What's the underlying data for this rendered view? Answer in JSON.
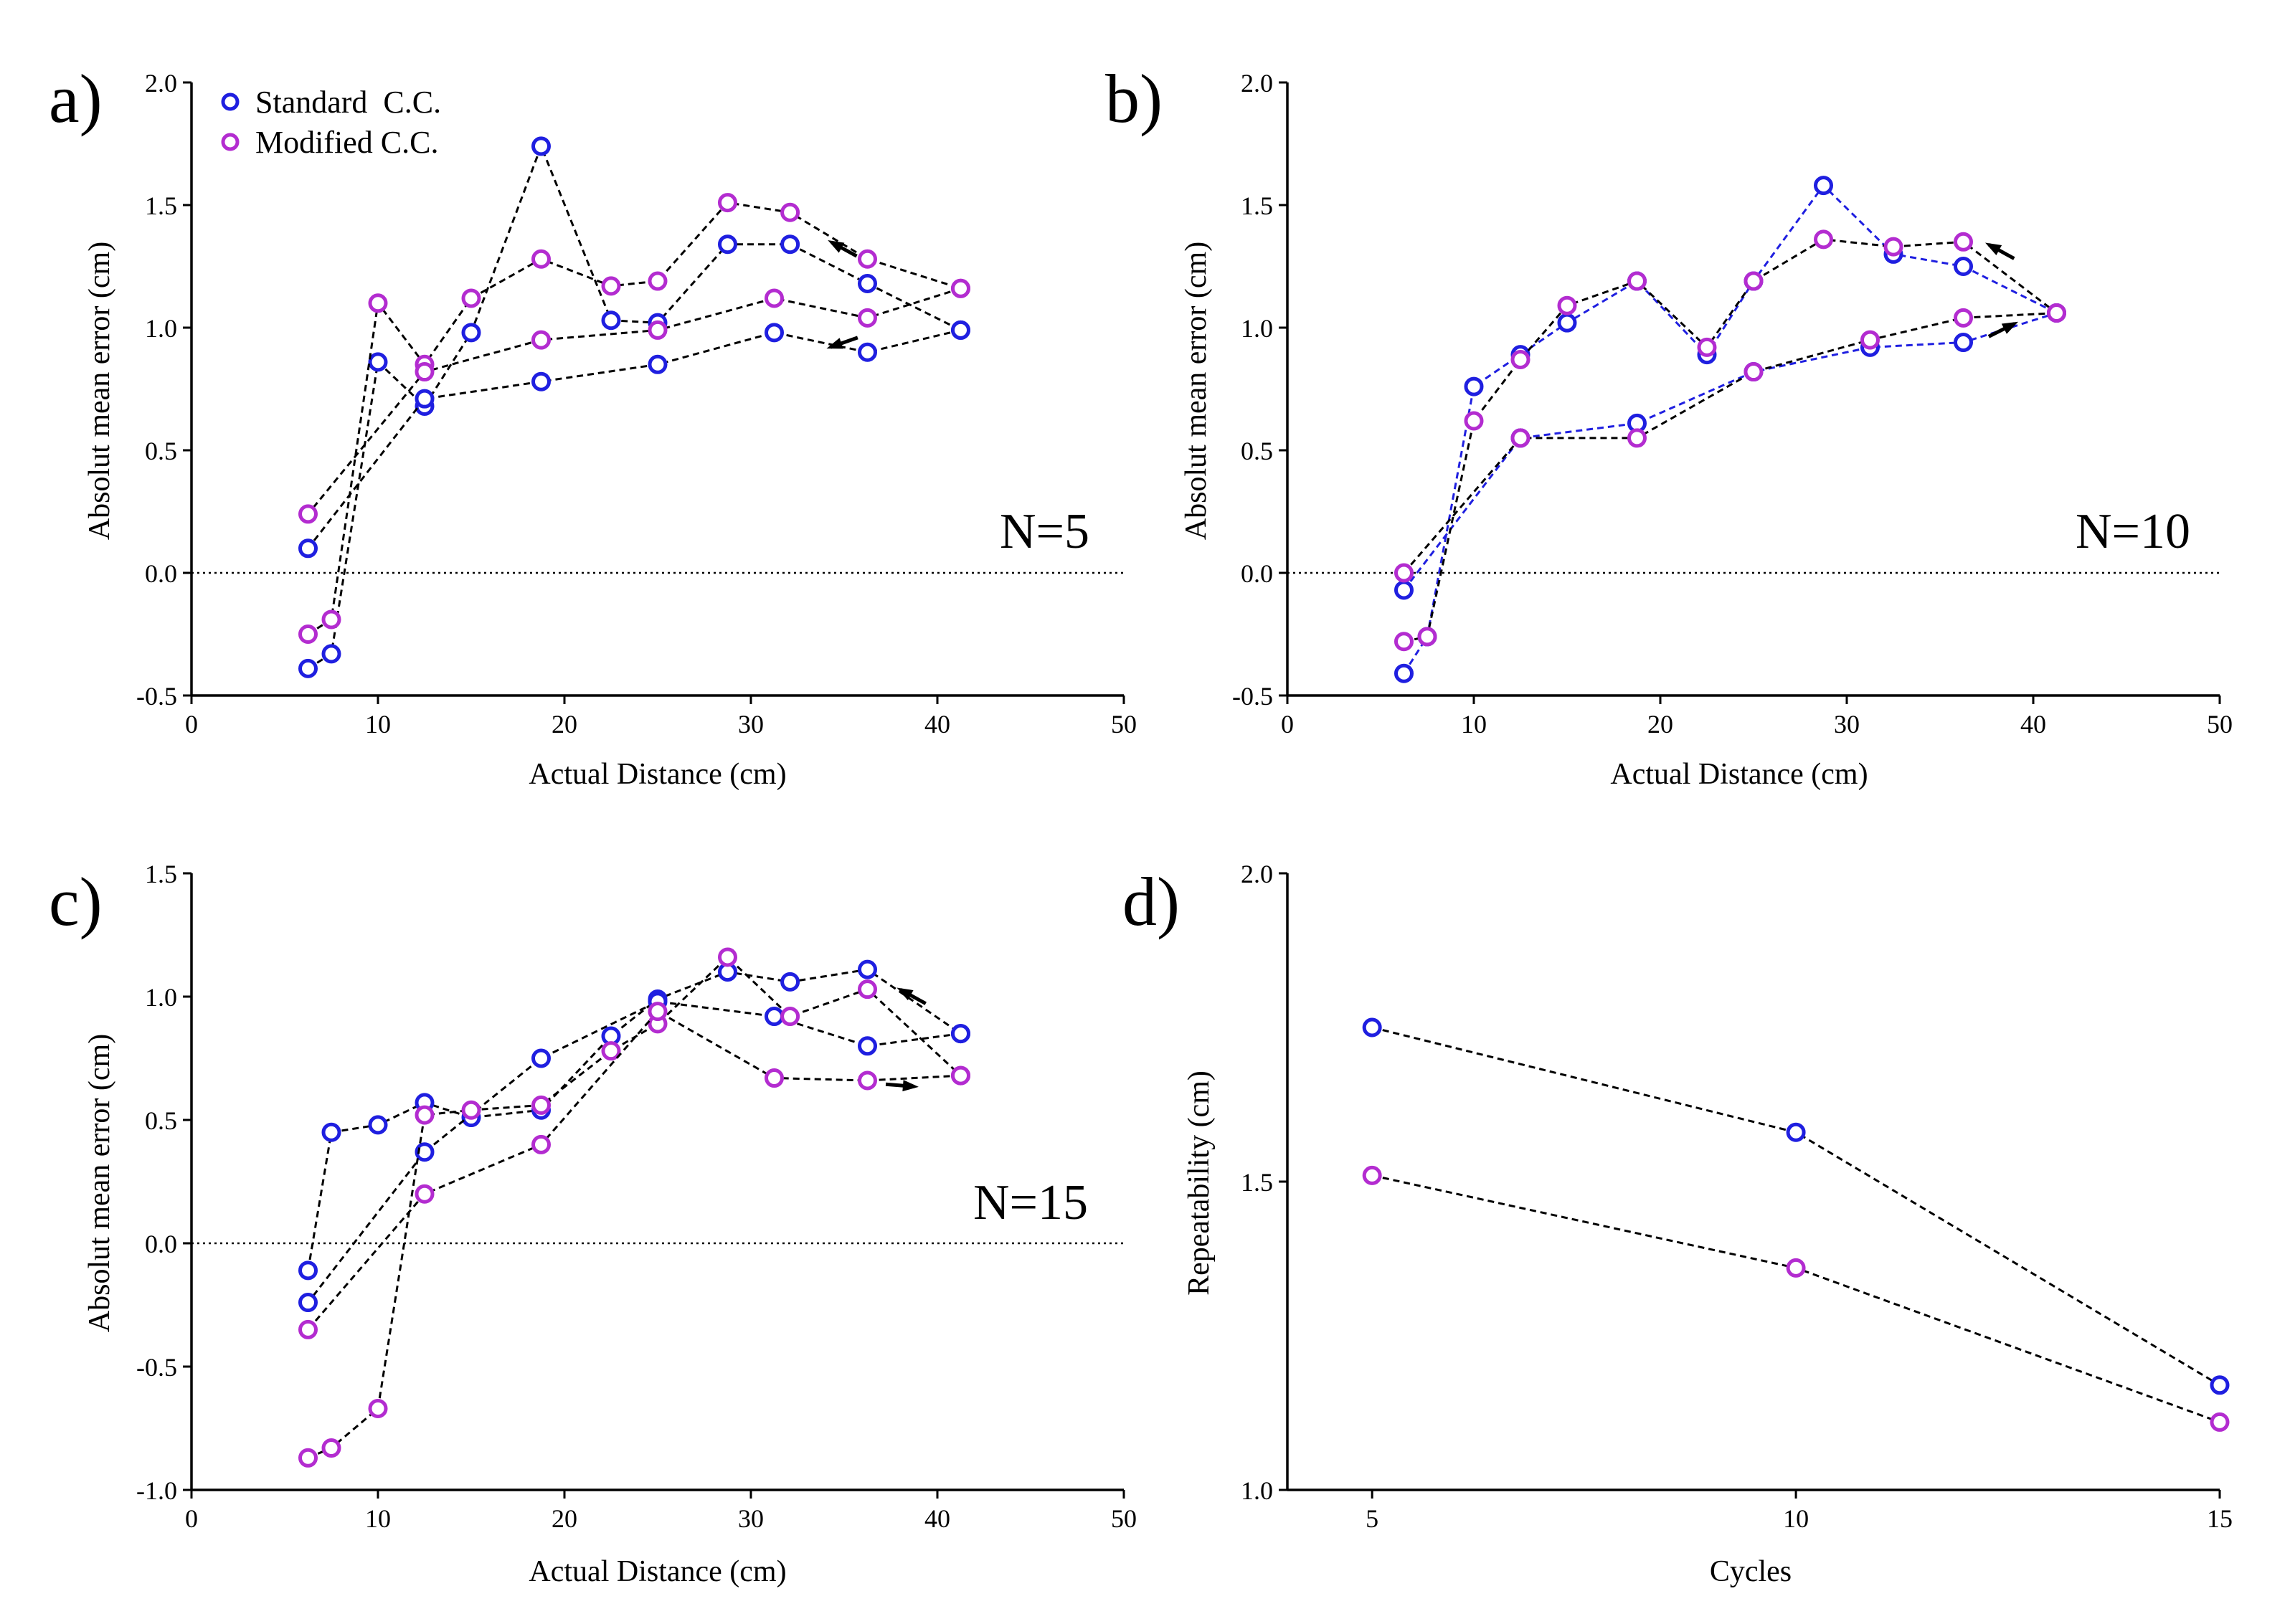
{
  "colors": {
    "standard": "#1f1fe0",
    "modified": "#b32cd0",
    "axis": "#000000",
    "line": "#000000"
  },
  "legend": {
    "standard": "Standard  C.C.",
    "modified": "Modified C.C."
  },
  "chart_data": [
    {
      "id": "a",
      "type": "line",
      "panel_letter": "a)",
      "n_label": "N=5",
      "xlabel": "Actual Distance (cm)",
      "ylabel": "Absolut mean error (cm)",
      "xlim": [
        0,
        50
      ],
      "ylim": [
        -0.5,
        2.0
      ],
      "xticks": [
        0,
        10,
        20,
        30,
        40,
        50
      ],
      "yticks": [
        -0.5,
        0.0,
        0.5,
        1.0,
        1.5,
        2.0
      ],
      "xtick_labels": [
        "0",
        "10",
        "20",
        "30",
        "40",
        "50"
      ],
      "ytick_labels": [
        "-0.5",
        "0.0",
        "0.5",
        "1.0",
        "1.5",
        "2.0"
      ],
      "legend_position": "top-left",
      "arrows": [
        "left-upper",
        "left-lower"
      ],
      "series": [
        {
          "name": "Standard C.C. (approach)",
          "group": "standard",
          "line": "black",
          "x": [
            6.25,
            7.5,
            10,
            12.5,
            15,
            18.75,
            22.5,
            25,
            28.75,
            32.1,
            36.25,
            41.25
          ],
          "y": [
            -0.39,
            -0.33,
            0.86,
            0.68,
            0.98,
            1.74,
            1.03,
            1.02,
            1.34,
            1.34,
            1.18,
            0.99
          ]
        },
        {
          "name": "Standard C.C. (return)",
          "group": "standard",
          "line": "black",
          "x": [
            41.25,
            36.25,
            31.25,
            25,
            18.75,
            12.5,
            6.25
          ],
          "y": [
            0.99,
            0.9,
            0.98,
            0.85,
            0.78,
            0.71,
            0.1
          ]
        },
        {
          "name": "Modified C.C. (approach)",
          "group": "modified",
          "line": "black",
          "x": [
            6.25,
            7.5,
            10,
            12.5,
            15,
            18.75,
            22.5,
            25,
            28.75,
            32.1,
            36.25,
            41.25
          ],
          "y": [
            -0.25,
            -0.19,
            1.1,
            0.85,
            1.12,
            1.28,
            1.17,
            1.19,
            1.51,
            1.47,
            1.28,
            1.16
          ]
        },
        {
          "name": "Modified C.C. (return)",
          "group": "modified",
          "line": "black",
          "x": [
            41.25,
            36.25,
            31.25,
            25,
            18.75,
            12.5,
            6.25
          ],
          "y": [
            1.16,
            1.04,
            1.12,
            0.99,
            0.95,
            0.82,
            0.24
          ]
        }
      ]
    },
    {
      "id": "b",
      "type": "line",
      "panel_letter": "b)",
      "n_label": "N=10",
      "xlabel": "Actual Distance (cm)",
      "ylabel": "Absolut mean error (cm)",
      "xlim": [
        0,
        50
      ],
      "ylim": [
        -0.5,
        2.0
      ],
      "xticks": [
        0,
        10,
        20,
        30,
        40,
        50
      ],
      "yticks": [
        -0.5,
        0.0,
        0.5,
        1.0,
        1.5,
        2.0
      ],
      "xtick_labels": [
        "0",
        "10",
        "20",
        "30",
        "40",
        "50"
      ],
      "ytick_labels": [
        "-0.5",
        "0.0",
        "0.5",
        "1.0",
        "1.5",
        "2.0"
      ],
      "arrows": [
        "left-upper",
        "right-lower"
      ],
      "series": [
        {
          "name": "Standard C.C. (approach)",
          "group": "standard",
          "line": "blue",
          "x": [
            6.25,
            7.5,
            10,
            12.5,
            15,
            18.75,
            22.5,
            25,
            28.75,
            32.5,
            36.25,
            41.25
          ],
          "y": [
            -0.41,
            -0.26,
            0.76,
            0.89,
            1.02,
            1.19,
            0.89,
            1.19,
            1.58,
            1.3,
            1.25,
            1.06
          ]
        },
        {
          "name": "Standard C.C. (return)",
          "group": "standard",
          "line": "blue",
          "x": [
            6.25,
            12.5,
            18.75,
            25,
            31.25,
            36.25,
            41.25
          ],
          "y": [
            -0.07,
            0.55,
            0.61,
            0.82,
            0.92,
            0.94,
            1.06
          ]
        },
        {
          "name": "Modified C.C. (approach)",
          "group": "modified",
          "line": "black",
          "x": [
            6.25,
            7.5,
            10,
            12.5,
            15,
            18.75,
            22.5,
            25,
            28.75,
            32.5,
            36.25,
            41.25
          ],
          "y": [
            -0.28,
            -0.26,
            0.62,
            0.87,
            1.09,
            1.19,
            0.92,
            1.19,
            1.36,
            1.33,
            1.35,
            1.06
          ]
        },
        {
          "name": "Modified C.C. (return)",
          "group": "modified",
          "line": "black",
          "x": [
            6.25,
            12.5,
            18.75,
            25,
            31.25,
            36.25,
            41.25
          ],
          "y": [
            0.0,
            0.55,
            0.55,
            0.82,
            0.95,
            1.04,
            1.06
          ]
        }
      ]
    },
    {
      "id": "c",
      "type": "line",
      "panel_letter": "c)",
      "n_label": "N=15",
      "xlabel": "Actual Distance (cm)",
      "ylabel": "Absolut mean error (cm)",
      "xlim": [
        0,
        50
      ],
      "ylim": [
        -1.0,
        1.5
      ],
      "xticks": [
        0,
        10,
        20,
        30,
        40,
        50
      ],
      "yticks": [
        -1.0,
        -0.5,
        0.0,
        0.5,
        1.0,
        1.5
      ],
      "xtick_labels": [
        "0",
        "10",
        "20",
        "30",
        "40",
        "50"
      ],
      "ytick_labels": [
        "-1.0",
        "-0.5",
        "0.0",
        "0.5",
        "1.0",
        "1.5"
      ],
      "arrows": [
        "left-upper",
        "right-lower"
      ],
      "series": [
        {
          "name": "Standard C.C. (approach)",
          "group": "standard",
          "line": "black",
          "x": [
            6.25,
            7.5,
            10,
            12.5,
            15,
            18.75,
            22.5,
            25,
            28.75,
            32.1,
            36.25,
            41.25
          ],
          "y": [
            -0.11,
            0.45,
            0.48,
            0.57,
            0.51,
            0.54,
            0.84,
            0.99,
            1.1,
            1.06,
            1.11,
            0.85
          ]
        },
        {
          "name": "Standard C.C. (return)",
          "group": "standard",
          "line": "black",
          "x": [
            41.25,
            36.25,
            31.25,
            25,
            18.75,
            12.5,
            6.25
          ],
          "y": [
            0.85,
            0.8,
            0.92,
            0.98,
            0.75,
            0.37,
            -0.24
          ]
        },
        {
          "name": "Modified C.C. (approach)",
          "group": "modified",
          "line": "black",
          "x": [
            6.25,
            7.5,
            10,
            12.5,
            15,
            18.75,
            22.5,
            25,
            28.75,
            32.1,
            36.25,
            41.25
          ],
          "y": [
            -0.87,
            -0.83,
            -0.67,
            0.52,
            0.54,
            0.56,
            0.78,
            0.89,
            1.16,
            0.92,
            1.03,
            0.68
          ]
        },
        {
          "name": "Modified C.C. (return)",
          "group": "modified",
          "line": "black",
          "x": [
            41.25,
            36.25,
            31.25,
            25,
            18.75,
            12.5,
            6.25
          ],
          "y": [
            0.68,
            0.66,
            0.67,
            0.94,
            0.4,
            0.2,
            -0.35
          ]
        }
      ]
    },
    {
      "id": "d",
      "type": "line",
      "panel_letter": "d)",
      "xlabel": "Cycles",
      "ylabel": "Repeatability (cm)",
      "xlim": [
        4,
        15
      ],
      "ylim": [
        1.0,
        2.0
      ],
      "xticks": [
        5,
        10,
        15
      ],
      "yticks": [
        1.0,
        1.5,
        2.0
      ],
      "xtick_labels": [
        "5",
        "10",
        "15"
      ],
      "ytick_labels": [
        "1.0",
        "1.5",
        "2.0"
      ],
      "series": [
        {
          "name": "Standard C.C.",
          "group": "standard",
          "line": "black",
          "x": [
            5,
            10,
            15
          ],
          "y": [
            1.75,
            1.58,
            1.17
          ]
        },
        {
          "name": "Modified C.C.",
          "group": "modified",
          "line": "black",
          "x": [
            5,
            10,
            15
          ],
          "y": [
            1.51,
            1.36,
            1.11
          ]
        }
      ]
    }
  ]
}
